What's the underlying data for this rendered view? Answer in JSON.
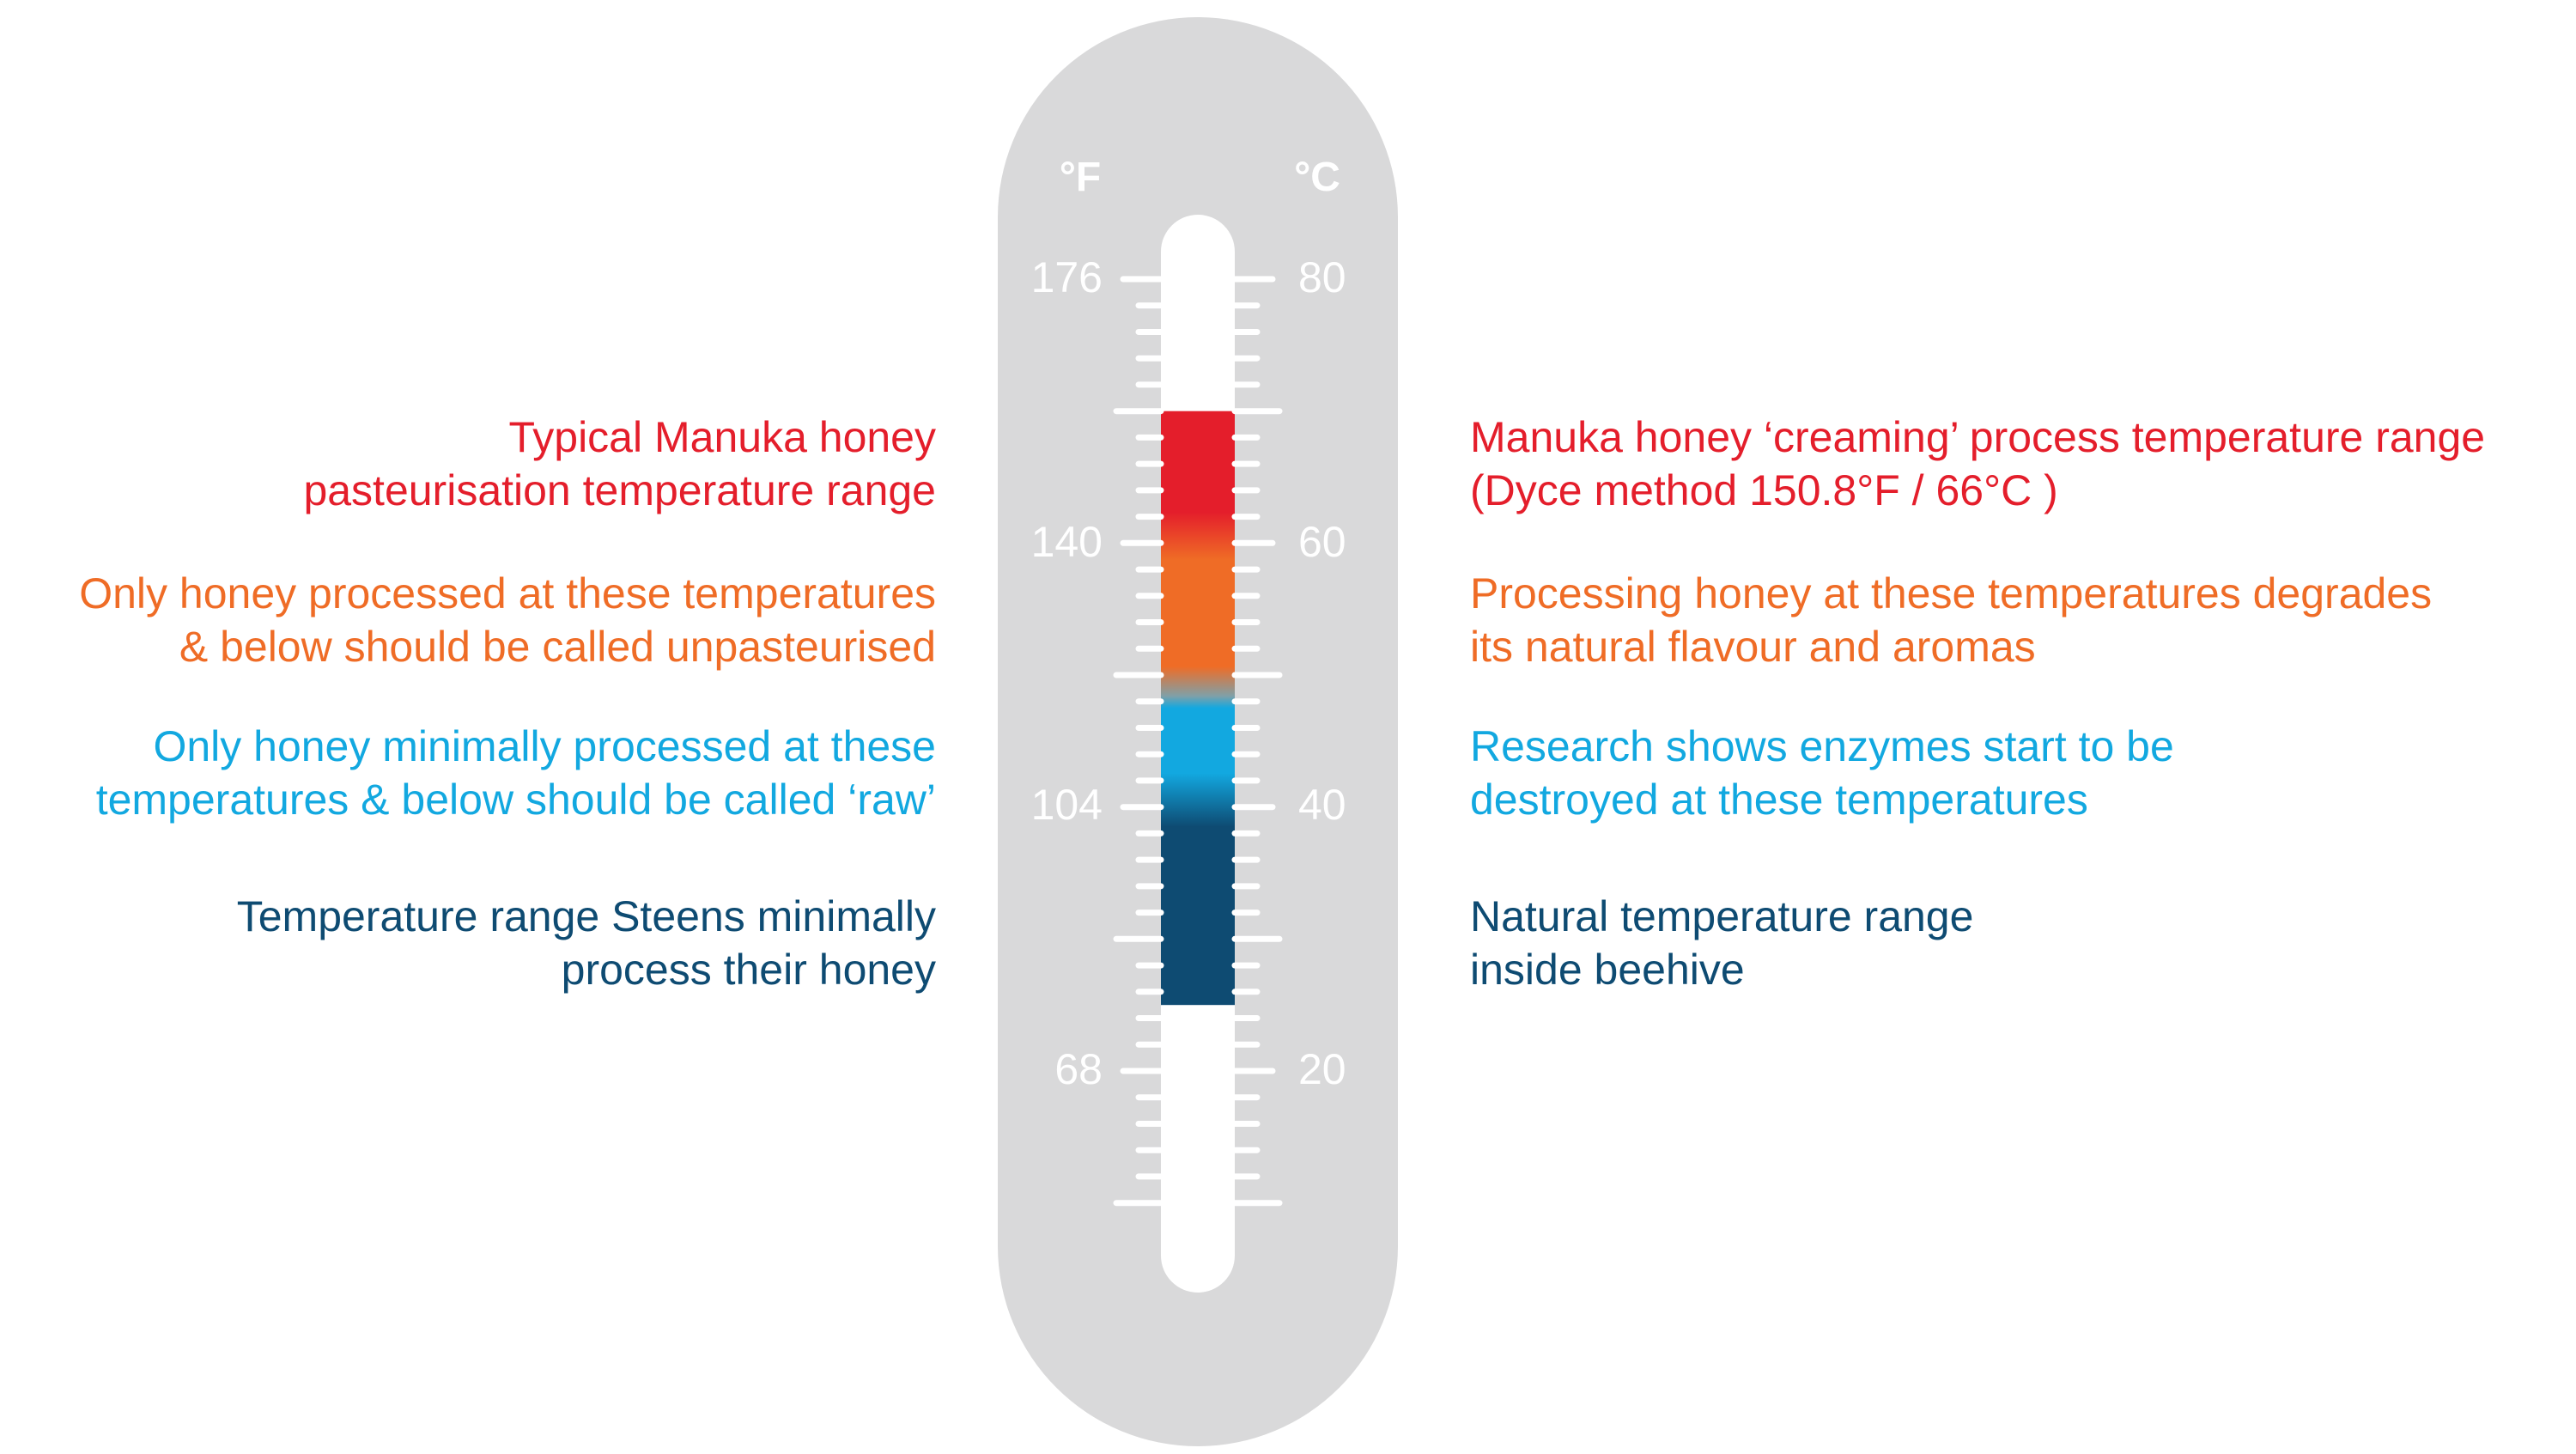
{
  "colors": {
    "red": "#e41e2b",
    "orange": "#ef6c26",
    "light_blue": "#12a8e0",
    "dark_blue": "#0e4b72",
    "body": "#d9d9da",
    "white": "#ffffff"
  },
  "thermometer": {
    "unit_f": "°F",
    "unit_c": "°C",
    "scale_f": [
      "176",
      "140",
      "104",
      "68"
    ],
    "scale_c": [
      "80",
      "60",
      "40",
      "20"
    ],
    "fill_range_c": [
      25,
      70
    ],
    "bands": [
      {
        "name": "red",
        "from_c": 58,
        "to_c": 70,
        "color": "#e41e2b"
      },
      {
        "name": "orange",
        "from_c": 48,
        "to_c": 60,
        "color": "#ef6c26"
      },
      {
        "name": "light_blue",
        "from_c": 38,
        "to_c": 48,
        "color": "#12a8e0"
      },
      {
        "name": "dark_blue",
        "from_c": 25,
        "to_c": 38,
        "color": "#0e4b72"
      }
    ]
  },
  "left_labels": [
    {
      "lines": [
        "Typical Manuka honey",
        "pasteurisation temperature range"
      ],
      "color": "#e41e2b"
    },
    {
      "lines": [
        "Only honey processed at these temperatures",
        "& below should be called unpasteurised"
      ],
      "color": "#ef6c26"
    },
    {
      "lines": [
        "Only honey minimally processed at these",
        "temperatures & below should be called ‘raw’"
      ],
      "color": "#12a8e0"
    },
    {
      "lines": [
        "Temperature range Steens minimally",
        "process their honey"
      ],
      "color": "#0e4b72"
    }
  ],
  "right_labels": [
    {
      "lines": [
        "Manuka honey ‘creaming’ process temperature range",
        "(Dyce method 150.8°F / 66°C )"
      ],
      "color": "#e41e2b"
    },
    {
      "lines": [
        "Processing honey at these temperatures degrades",
        "its natural flavour and aromas"
      ],
      "color": "#ef6c26"
    },
    {
      "lines": [
        "Research shows enzymes start to be",
        "destroyed at these temperatures"
      ],
      "color": "#12a8e0"
    },
    {
      "lines": [
        "Natural temperature range",
        "inside beehive"
      ],
      "color": "#0e4b72"
    }
  ]
}
